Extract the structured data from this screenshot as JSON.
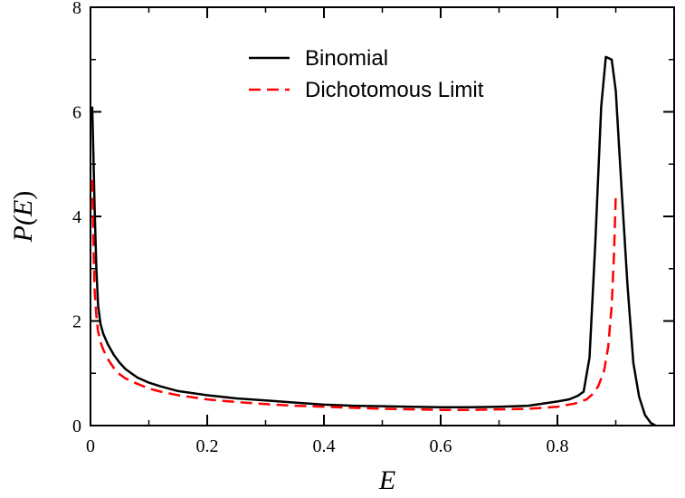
{
  "chart_data": {
    "type": "line",
    "title": "",
    "xlabel": "E",
    "ylabel_parts": [
      "P(",
      "E",
      ")"
    ],
    "xlim": [
      0,
      1
    ],
    "ylim": [
      0,
      8
    ],
    "xticks": [
      0,
      0.2,
      0.4,
      0.6,
      0.8
    ],
    "xtick_labels": [
      "0",
      "0.2",
      "0.4",
      "0.6",
      "0.8"
    ],
    "yticks": [
      0,
      2,
      4,
      6,
      8
    ],
    "ytick_labels": [
      "0",
      "2",
      "4",
      "6",
      "8"
    ],
    "grid": false,
    "legend_position": "top-center",
    "series": [
      {
        "name": "Binomial",
        "color": "#000000",
        "style": "solid",
        "x": [
          0.003,
          0.005,
          0.007,
          0.01,
          0.013,
          0.017,
          0.022,
          0.03,
          0.04,
          0.05,
          0.06,
          0.08,
          0.1,
          0.12,
          0.15,
          0.2,
          0.25,
          0.3,
          0.35,
          0.4,
          0.45,
          0.5,
          0.55,
          0.6,
          0.65,
          0.7,
          0.75,
          0.8,
          0.82,
          0.835,
          0.845,
          0.855,
          0.865,
          0.875,
          0.883,
          0.893,
          0.9,
          0.91,
          0.92,
          0.93,
          0.94,
          0.95,
          0.96,
          0.968
        ],
        "y": [
          6.1,
          5.2,
          4.2,
          3.0,
          2.3,
          1.95,
          1.75,
          1.55,
          1.35,
          1.2,
          1.08,
          0.92,
          0.82,
          0.75,
          0.66,
          0.58,
          0.52,
          0.48,
          0.44,
          0.4,
          0.38,
          0.37,
          0.36,
          0.35,
          0.35,
          0.36,
          0.38,
          0.46,
          0.5,
          0.57,
          0.65,
          1.3,
          3.5,
          6.1,
          7.05,
          7.0,
          6.4,
          4.5,
          2.7,
          1.2,
          0.55,
          0.2,
          0.05,
          0.0
        ]
      },
      {
        "name": "Dichotomous Limit",
        "color": "#ff0000",
        "style": "dashed",
        "x": [
          0.003,
          0.005,
          0.007,
          0.01,
          0.013,
          0.017,
          0.022,
          0.03,
          0.04,
          0.05,
          0.06,
          0.08,
          0.1,
          0.12,
          0.15,
          0.2,
          0.25,
          0.3,
          0.35,
          0.4,
          0.45,
          0.5,
          0.55,
          0.6,
          0.65,
          0.7,
          0.75,
          0.8,
          0.83,
          0.85,
          0.86,
          0.87,
          0.88,
          0.887,
          0.893,
          0.897,
          0.9
        ],
        "y": [
          4.7,
          3.5,
          2.6,
          2.1,
          1.8,
          1.6,
          1.45,
          1.27,
          1.1,
          0.98,
          0.9,
          0.8,
          0.71,
          0.65,
          0.58,
          0.5,
          0.45,
          0.41,
          0.38,
          0.36,
          0.34,
          0.32,
          0.31,
          0.3,
          0.3,
          0.31,
          0.32,
          0.36,
          0.42,
          0.5,
          0.6,
          0.75,
          1.05,
          1.5,
          2.3,
          3.3,
          4.4
        ]
      }
    ]
  }
}
